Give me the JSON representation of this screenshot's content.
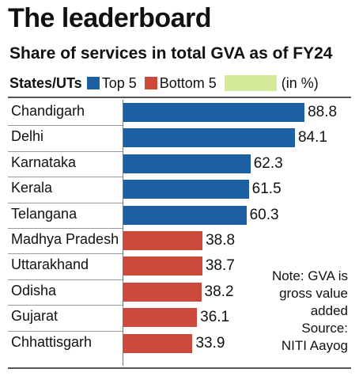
{
  "chart_data": {
    "type": "bar",
    "orientation": "horizontal",
    "title": "The leaderboard",
    "subtitle": "Share of services in total GVA as of FY24",
    "category_header": "States/UTs",
    "unit_label": "(in %)",
    "legend": [
      {
        "label": "Top 5",
        "color": "#1d5fa3"
      },
      {
        "label": "Bottom 5",
        "color": "#cc4a3b"
      },
      {
        "label": "",
        "color": "#d4e89a"
      }
    ],
    "categories": [
      "Chandigarh",
      "Delhi",
      "Karnataka",
      "Kerala",
      "Telangana",
      "Madhya Pradesh",
      "Uttarakhand",
      "Odisha",
      "Gujarat",
      "Chhattisgarh"
    ],
    "values": [
      88.8,
      84.1,
      62.3,
      61.5,
      60.3,
      38.8,
      38.7,
      38.2,
      36.1,
      33.9
    ],
    "value_labels": [
      "88.8",
      "84.1",
      "62.3",
      "61.5",
      "60.3",
      "38.8",
      "38.7",
      "38.2",
      "36.1",
      "33.9"
    ],
    "groups": [
      "Top 5",
      "Top 5",
      "Top 5",
      "Top 5",
      "Top 5",
      "Bottom 5",
      "Bottom 5",
      "Bottom 5",
      "Bottom 5",
      "Bottom 5"
    ],
    "xlim": [
      0,
      100
    ],
    "grid": false,
    "note_lines": [
      "Note: GVA is",
      "gross value",
      "added",
      "Source:",
      "NITI Aayog"
    ]
  }
}
